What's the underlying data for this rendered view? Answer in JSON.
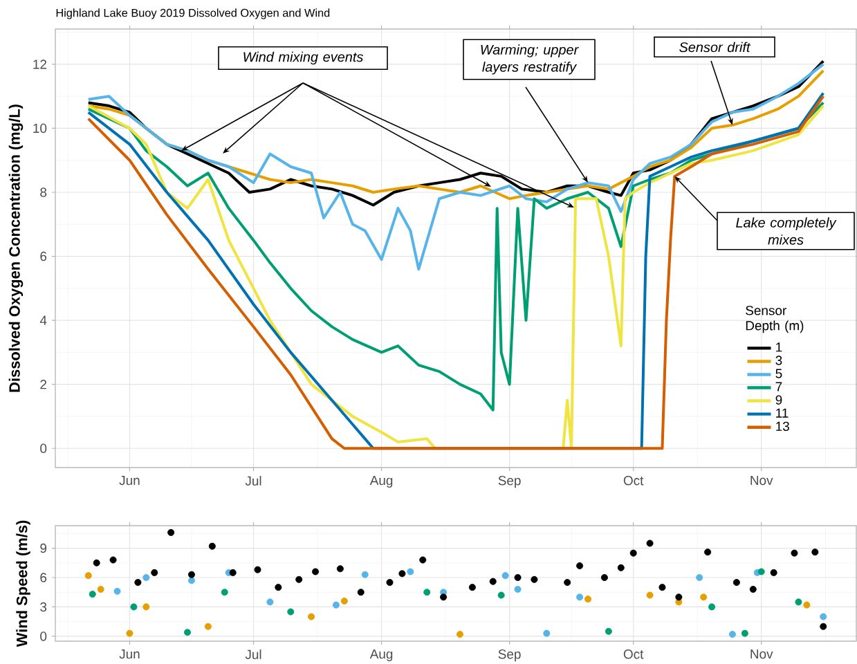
{
  "chart_data": [
    {
      "type": "line",
      "title": "Highland Lake Buoy 2019 Dissolved Oxygen and Wind",
      "ylabel": "Dissolved Oxygen Concentration (mg/L)",
      "legend_title": "Sensor Depth (m)",
      "legend": "right",
      "grid": true,
      "xlim": [
        "2019-05-14",
        "2019-11-24"
      ],
      "xticks": [
        {
          "value": "2019-06-01",
          "label": "Jun"
        },
        {
          "value": "2019-07-01",
          "label": "Jul"
        },
        {
          "value": "2019-08-01",
          "label": "Aug"
        },
        {
          "value": "2019-09-01",
          "label": "Sep"
        },
        {
          "value": "2019-10-01",
          "label": "Oct"
        },
        {
          "value": "2019-11-01",
          "label": "Nov"
        }
      ],
      "ylim": [
        -0.6,
        13.1
      ],
      "yticks": [
        0,
        2,
        4,
        6,
        8,
        10,
        12
      ],
      "annotations": [
        "Wind mixing events",
        {
          "text": "Warming; upper layers restratify",
          "x": "2019-09-20",
          "y": 8.3
        },
        {
          "text": "Sensor drift",
          "x": "2019-10-25",
          "y": 10.1
        },
        {
          "text": "Lake completely mixes",
          "x": "2019-10-11",
          "y": 8.5
        }
      ],
      "series": [
        {
          "name": "1",
          "color": "#000000",
          "x": [
            "2019-05-22",
            "2019-05-27",
            "2019-06-01",
            "2019-06-05",
            "2019-06-10",
            "2019-06-15",
            "2019-06-20",
            "2019-06-25",
            "2019-06-30",
            "2019-07-05",
            "2019-07-10",
            "2019-07-15",
            "2019-07-20",
            "2019-07-25",
            "2019-07-30",
            "2019-08-04",
            "2019-08-10",
            "2019-08-15",
            "2019-08-20",
            "2019-08-25",
            "2019-08-30",
            "2019-09-04",
            "2019-09-10",
            "2019-09-15",
            "2019-09-20",
            "2019-09-25",
            "2019-09-28",
            "2019-10-01",
            "2019-10-05",
            "2019-10-10",
            "2019-10-15",
            "2019-10-20",
            "2019-10-25",
            "2019-10-30",
            "2019-11-05",
            "2019-11-10",
            "2019-11-16"
          ],
          "values": [
            10.8,
            10.7,
            10.5,
            10.0,
            9.5,
            9.2,
            8.9,
            8.6,
            8.0,
            8.1,
            8.4,
            8.2,
            8.1,
            7.9,
            7.6,
            8.0,
            8.2,
            8.3,
            8.4,
            8.6,
            8.5,
            8.1,
            8.0,
            8.2,
            8.2,
            8.0,
            7.9,
            8.6,
            8.7,
            9.0,
            9.5,
            10.3,
            10.5,
            10.7,
            11.0,
            11.3,
            12.1
          ]
        },
        {
          "name": "3",
          "color": "#E69F00",
          "x": [
            "2019-05-22",
            "2019-05-27",
            "2019-06-01",
            "2019-06-05",
            "2019-06-10",
            "2019-06-15",
            "2019-06-20",
            "2019-06-25",
            "2019-06-30",
            "2019-07-05",
            "2019-07-10",
            "2019-07-15",
            "2019-07-20",
            "2019-07-25",
            "2019-07-30",
            "2019-08-04",
            "2019-08-10",
            "2019-08-15",
            "2019-08-20",
            "2019-08-25",
            "2019-09-01",
            "2019-09-05",
            "2019-09-10",
            "2019-09-15",
            "2019-09-20",
            "2019-09-25",
            "2019-10-01",
            "2019-10-05",
            "2019-10-10",
            "2019-10-15",
            "2019-10-20",
            "2019-10-25",
            "2019-10-30",
            "2019-11-05",
            "2019-11-10",
            "2019-11-16"
          ],
          "values": [
            10.7,
            10.6,
            10.4,
            10.0,
            9.5,
            9.3,
            9.0,
            8.8,
            8.6,
            8.4,
            8.3,
            8.4,
            8.3,
            8.2,
            8.0,
            8.1,
            8.2,
            8.1,
            8.0,
            8.2,
            7.8,
            7.9,
            8.0,
            8.1,
            8.2,
            8.1,
            8.5,
            8.8,
            9.0,
            9.4,
            10.0,
            10.1,
            10.3,
            10.6,
            11.0,
            11.8
          ]
        },
        {
          "name": "5",
          "color": "#56B4E9",
          "x": [
            "2019-05-22",
            "2019-05-27",
            "2019-06-01",
            "2019-06-10",
            "2019-06-15",
            "2019-06-20",
            "2019-06-25",
            "2019-07-01",
            "2019-07-05",
            "2019-07-10",
            "2019-07-15",
            "2019-07-18",
            "2019-07-22",
            "2019-07-25",
            "2019-07-28",
            "2019-08-01",
            "2019-08-05",
            "2019-08-08",
            "2019-08-10",
            "2019-08-15",
            "2019-08-20",
            "2019-08-25",
            "2019-09-01",
            "2019-09-05",
            "2019-09-10",
            "2019-09-15",
            "2019-09-20",
            "2019-09-25",
            "2019-09-28",
            "2019-10-01",
            "2019-10-05",
            "2019-10-10",
            "2019-10-15",
            "2019-10-20",
            "2019-10-25",
            "2019-10-30",
            "2019-11-05",
            "2019-11-10",
            "2019-11-16"
          ],
          "values": [
            10.9,
            11.0,
            10.4,
            9.5,
            9.3,
            9.0,
            8.8,
            8.3,
            9.2,
            8.8,
            8.6,
            7.2,
            8.0,
            7.0,
            6.8,
            5.9,
            7.5,
            6.8,
            5.6,
            7.8,
            8.0,
            7.9,
            8.2,
            7.8,
            7.7,
            8.1,
            8.3,
            8.2,
            7.4,
            8.4,
            8.9,
            9.1,
            9.5,
            10.2,
            10.5,
            10.6,
            11.0,
            11.4,
            12.0
          ]
        },
        {
          "name": "7",
          "color": "#009E73",
          "x": [
            "2019-05-22",
            "2019-06-01",
            "2019-06-05",
            "2019-06-10",
            "2019-06-15",
            "2019-06-20",
            "2019-06-25",
            "2019-07-01",
            "2019-07-05",
            "2019-07-10",
            "2019-07-15",
            "2019-07-20",
            "2019-07-25",
            "2019-08-01",
            "2019-08-05",
            "2019-08-10",
            "2019-08-15",
            "2019-08-20",
            "2019-08-25",
            "2019-08-28",
            "2019-08-29",
            "2019-08-30",
            "2019-09-01",
            "2019-09-03",
            "2019-09-05",
            "2019-09-07",
            "2019-09-10",
            "2019-09-15",
            "2019-09-20",
            "2019-09-25",
            "2019-09-28",
            "2019-10-01",
            "2019-10-05",
            "2019-10-10",
            "2019-10-15",
            "2019-10-20",
            "2019-10-30",
            "2019-11-10",
            "2019-11-16"
          ],
          "values": [
            10.6,
            10.0,
            9.3,
            8.8,
            8.2,
            8.6,
            7.5,
            6.5,
            5.8,
            5.0,
            4.3,
            3.8,
            3.4,
            3.0,
            3.2,
            2.6,
            2.4,
            2.0,
            1.7,
            1.2,
            7.5,
            3.0,
            2.0,
            7.5,
            4.0,
            7.8,
            7.5,
            7.8,
            8.0,
            7.5,
            6.3,
            8.2,
            8.4,
            8.6,
            9.0,
            9.2,
            9.6,
            10.0,
            10.8
          ]
        },
        {
          "name": "9",
          "color": "#F0E442",
          "x": [
            "2019-05-22",
            "2019-06-01",
            "2019-06-05",
            "2019-06-10",
            "2019-06-15",
            "2019-06-20",
            "2019-06-25",
            "2019-07-01",
            "2019-07-05",
            "2019-07-10",
            "2019-07-15",
            "2019-07-20",
            "2019-07-25",
            "2019-08-01",
            "2019-08-05",
            "2019-08-12",
            "2019-08-14",
            "2019-09-14",
            "2019-09-15",
            "2019-09-16",
            "2019-09-17",
            "2019-09-22",
            "2019-09-25",
            "2019-09-28",
            "2019-09-29",
            "2019-10-01",
            "2019-10-05",
            "2019-10-10",
            "2019-10-15",
            "2019-10-20",
            "2019-10-30",
            "2019-11-10",
            "2019-11-16"
          ],
          "values": [
            10.7,
            10.0,
            9.5,
            8.0,
            7.5,
            8.4,
            6.5,
            5.0,
            4.0,
            3.0,
            2.0,
            1.5,
            1.0,
            0.5,
            0.2,
            0.3,
            0,
            0,
            1.5,
            0,
            7.8,
            7.8,
            6.0,
            3.2,
            7.8,
            8.0,
            8.3,
            8.6,
            8.9,
            9.0,
            9.3,
            9.8,
            10.7
          ]
        },
        {
          "name": "11",
          "color": "#0072B2",
          "x": [
            "2019-05-22",
            "2019-06-01",
            "2019-06-10",
            "2019-06-20",
            "2019-07-01",
            "2019-07-10",
            "2019-07-20",
            "2019-07-28",
            "2019-07-30",
            "2019-10-03",
            "2019-10-04",
            "2019-10-05",
            "2019-10-10",
            "2019-10-15",
            "2019-10-20",
            "2019-10-30",
            "2019-11-10",
            "2019-11-16"
          ],
          "values": [
            10.5,
            9.5,
            8.0,
            6.5,
            4.5,
            3.0,
            1.5,
            0.3,
            0,
            0,
            6.0,
            8.5,
            8.8,
            9.1,
            9.3,
            9.6,
            10.0,
            11.1
          ]
        },
        {
          "name": "13",
          "color": "#D55E00",
          "x": [
            "2019-05-22",
            "2019-06-01",
            "2019-06-10",
            "2019-06-20",
            "2019-07-01",
            "2019-07-10",
            "2019-07-15",
            "2019-07-20",
            "2019-07-23",
            "2019-10-08",
            "2019-10-09",
            "2019-10-10",
            "2019-10-11",
            "2019-10-15",
            "2019-10-20",
            "2019-10-30",
            "2019-11-10",
            "2019-11-16"
          ],
          "values": [
            10.3,
            9.0,
            7.3,
            5.6,
            3.8,
            2.3,
            1.3,
            0.3,
            0,
            0,
            4.0,
            6.5,
            8.5,
            8.8,
            9.2,
            9.5,
            9.9,
            11.0
          ]
        }
      ]
    },
    {
      "type": "scatter",
      "ylabel": "Wind Speed (m/s)",
      "grid": true,
      "marker": "circle",
      "xlim": [
        "2019-05-14",
        "2019-11-24"
      ],
      "xticks": [
        {
          "value": "2019-06-01",
          "label": "Jun"
        },
        {
          "value": "2019-07-01",
          "label": "Jul"
        },
        {
          "value": "2019-08-01",
          "label": "Aug"
        },
        {
          "value": "2019-09-01",
          "label": "Sep"
        },
        {
          "value": "2019-10-01",
          "label": "Oct"
        },
        {
          "value": "2019-11-01",
          "label": "Nov"
        }
      ],
      "ylim": [
        -0.5,
        11.3
      ],
      "yticks": [
        0,
        3,
        6,
        9
      ],
      "series": [
        {
          "color": "#E69F00",
          "x": [
            "2019-05-22",
            "2019-05-25",
            "2019-06-01",
            "2019-06-05",
            "2019-06-20",
            "2019-07-15",
            "2019-07-23",
            "2019-08-20",
            "2019-09-20",
            "2019-10-05",
            "2019-10-12",
            "2019-10-18",
            "2019-11-12"
          ],
          "values": [
            6.2,
            4.8,
            0.3,
            3.0,
            1.0,
            2.0,
            3.6,
            0.2,
            3.8,
            4.2,
            3.5,
            4.0,
            3.2
          ]
        },
        {
          "color": "#56B4E9",
          "x": [
            "2019-05-29",
            "2019-06-05",
            "2019-06-16",
            "2019-06-25",
            "2019-07-05",
            "2019-07-21",
            "2019-07-28",
            "2019-08-08",
            "2019-08-16",
            "2019-08-31",
            "2019-09-03",
            "2019-09-10",
            "2019-09-18",
            "2019-10-17",
            "2019-10-25",
            "2019-10-31",
            "2019-11-16"
          ],
          "values": [
            4.6,
            6.0,
            5.7,
            6.5,
            3.5,
            3.2,
            6.3,
            6.6,
            4.5,
            6.2,
            4.8,
            0.3,
            4.0,
            6.0,
            0.2,
            6.5,
            2.0
          ]
        },
        {
          "color": "#009E73",
          "x": [
            "2019-05-23",
            "2019-06-02",
            "2019-06-15",
            "2019-06-24",
            "2019-07-10",
            "2019-08-12",
            "2019-08-30",
            "2019-09-25",
            "2019-10-20",
            "2019-10-28",
            "2019-11-01",
            "2019-11-10"
          ],
          "values": [
            4.3,
            3.0,
            0.4,
            4.5,
            2.5,
            4.5,
            4.2,
            0.5,
            3.0,
            0.3,
            6.6,
            3.5
          ]
        },
        {
          "color": "#000000",
          "x": [
            "2019-05-24",
            "2019-05-28",
            "2019-06-03",
            "2019-06-07",
            "2019-06-11",
            "2019-06-16",
            "2019-06-21",
            "2019-06-26",
            "2019-07-02",
            "2019-07-07",
            "2019-07-12",
            "2019-07-16",
            "2019-07-22",
            "2019-07-27",
            "2019-08-03",
            "2019-08-06",
            "2019-08-11",
            "2019-08-16",
            "2019-08-23",
            "2019-08-28",
            "2019-09-03",
            "2019-09-07",
            "2019-09-15",
            "2019-09-18",
            "2019-09-24",
            "2019-09-28",
            "2019-10-01",
            "2019-10-05",
            "2019-10-08",
            "2019-10-12",
            "2019-10-19",
            "2019-10-26",
            "2019-10-30",
            "2019-11-04",
            "2019-11-09",
            "2019-11-14",
            "2019-11-16"
          ],
          "values": [
            7.5,
            7.8,
            5.5,
            6.5,
            10.6,
            6.3,
            9.2,
            6.5,
            6.8,
            5.0,
            5.8,
            6.6,
            6.9,
            4.5,
            5.5,
            6.4,
            7.8,
            4.0,
            5.0,
            5.6,
            6.0,
            5.8,
            5.5,
            7.2,
            6.0,
            7.0,
            8.5,
            9.5,
            5.0,
            4.0,
            8.6,
            5.5,
            4.8,
            6.5,
            8.5,
            8.6,
            1.0
          ]
        }
      ]
    }
  ]
}
